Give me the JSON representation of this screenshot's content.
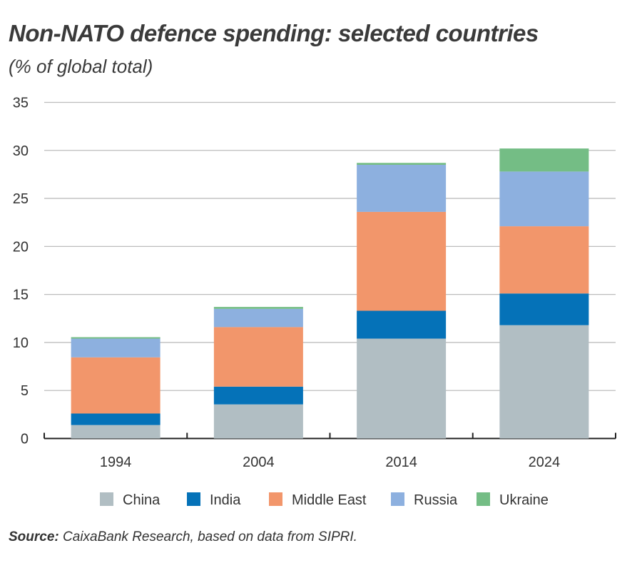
{
  "chart_data": {
    "type": "bar",
    "stacked": true,
    "title": "Non-NATO defence spending: selected countries",
    "subtitle": "(% of global total)",
    "xlabel": "",
    "ylabel": "",
    "ylim": [
      0,
      35
    ],
    "yticks": [
      "0",
      "5",
      "10",
      "15",
      "20",
      "25",
      "30",
      "35"
    ],
    "grid": true,
    "legend_position": "bottom",
    "categories": [
      "1994",
      "2004",
      "2014",
      "2024"
    ],
    "series": [
      {
        "name": "China",
        "color": "#b1bec3",
        "values": [
          1.4,
          3.55,
          10.4,
          11.8
        ]
      },
      {
        "name": "India",
        "color": "#0572b8",
        "values": [
          1.2,
          1.85,
          2.9,
          3.3
        ]
      },
      {
        "name": "Middle East",
        "color": "#f2966b",
        "values": [
          5.85,
          6.2,
          10.3,
          7.0
        ]
      },
      {
        "name": "Russia",
        "color": "#8db0df",
        "values": [
          1.95,
          1.9,
          4.9,
          5.7
        ]
      },
      {
        "name": "Ukraine",
        "color": "#74bd85",
        "values": [
          0.15,
          0.2,
          0.2,
          2.4
        ]
      }
    ]
  },
  "source": {
    "label": "Source:",
    "text": " CaixaBank Research, based on data from SIPRI."
  }
}
